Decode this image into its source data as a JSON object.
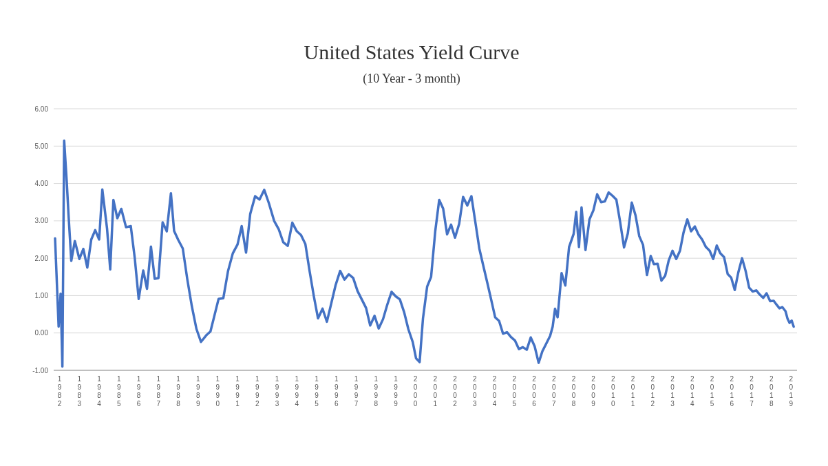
{
  "chart_data": {
    "type": "line",
    "title": "United States Yield Curve",
    "subtitle": "(10 Year - 3 month)",
    "x": [
      1981.77,
      1981.95,
      1982.05,
      1982.14,
      1982.23,
      1982.36,
      1982.45,
      1982.59,
      1982.77,
      1983.0,
      1983.2,
      1983.4,
      1983.6,
      1983.8,
      1984.0,
      1984.16,
      1984.4,
      1984.56,
      1984.72,
      1984.92,
      1985.12,
      1985.36,
      1985.6,
      1985.8,
      1986.0,
      1986.23,
      1986.42,
      1986.62,
      1986.81,
      1987.0,
      1987.21,
      1987.42,
      1987.63,
      1987.79,
      1988.0,
      1988.23,
      1988.46,
      1988.69,
      1988.92,
      1989.15,
      1989.44,
      1989.63,
      1989.81,
      1990.04,
      1990.28,
      1990.52,
      1990.76,
      1991.0,
      1991.21,
      1991.43,
      1991.64,
      1991.89,
      1992.11,
      1992.35,
      1992.58,
      1992.85,
      1993.08,
      1993.31,
      1993.54,
      1993.77,
      1994.0,
      1994.21,
      1994.43,
      1994.64,
      1994.86,
      1995.07,
      1995.3,
      1995.52,
      1995.74,
      1995.96,
      1996.19,
      1996.41,
      1996.63,
      1996.85,
      1997.07,
      1997.29,
      1997.5,
      1997.71,
      1997.93,
      1998.14,
      1998.36,
      1998.57,
      1998.79,
      1999.0,
      1999.21,
      1999.43,
      1999.64,
      1999.86,
      2000.03,
      2000.21,
      2000.38,
      2000.59,
      2000.79,
      2001.0,
      2001.2,
      2001.4,
      2001.6,
      2001.8,
      2002.0,
      2002.21,
      2002.41,
      2002.62,
      2002.83,
      2003.03,
      2003.23,
      2003.43,
      2003.63,
      2003.83,
      2004.03,
      2004.23,
      2004.43,
      2004.63,
      2004.83,
      2005.03,
      2005.23,
      2005.43,
      2005.63,
      2005.83,
      2006.03,
      2006.23,
      2006.42,
      2006.61,
      2006.81,
      2006.94,
      2007.06,
      2007.19,
      2007.39,
      2007.58,
      2007.77,
      2008.0,
      2008.13,
      2008.27,
      2008.4,
      2008.6,
      2008.8,
      2009.0,
      2009.19,
      2009.39,
      2009.58,
      2009.77,
      2009.97,
      2010.16,
      2010.35,
      2010.55,
      2010.74,
      2010.94,
      2011.13,
      2011.32,
      2011.51,
      2011.71,
      2011.9,
      2012.06,
      2012.25,
      2012.44,
      2012.63,
      2012.81,
      2013.0,
      2013.19,
      2013.38,
      2013.56,
      2013.75,
      2013.94,
      2014.13,
      2014.31,
      2014.5,
      2014.69,
      2014.88,
      2015.06,
      2015.24,
      2015.42,
      2015.61,
      2015.79,
      2015.97,
      2016.15,
      2016.33,
      2016.52,
      2016.7,
      2016.88,
      2017.06,
      2017.24,
      2017.41,
      2017.59,
      2017.76,
      2017.94,
      2018.12,
      2018.26,
      2018.41,
      2018.56,
      2018.72,
      2018.82,
      2018.92,
      2019.03,
      2019.13
    ],
    "series": [
      {
        "color": "#4472c4",
        "values": [
          2.53,
          0.17,
          1.05,
          -0.9,
          5.15,
          4.05,
          3.17,
          1.93,
          2.46,
          1.98,
          2.25,
          1.75,
          2.5,
          2.75,
          2.5,
          3.84,
          2.79,
          1.7,
          3.56,
          3.07,
          3.32,
          2.83,
          2.86,
          2.01,
          0.91,
          1.67,
          1.18,
          2.31,
          1.45,
          1.47,
          2.96,
          2.72,
          3.74,
          2.73,
          2.49,
          2.26,
          1.43,
          0.71,
          0.11,
          -0.24,
          -0.05,
          0.04,
          0.42,
          0.91,
          0.93,
          1.66,
          2.13,
          2.37,
          2.86,
          2.15,
          3.18,
          3.66,
          3.57,
          3.83,
          3.48,
          3.0,
          2.78,
          2.43,
          2.33,
          2.95,
          2.72,
          2.62,
          2.38,
          1.67,
          0.98,
          0.39,
          0.65,
          0.3,
          0.79,
          1.28,
          1.66,
          1.43,
          1.57,
          1.47,
          1.12,
          0.89,
          0.67,
          0.2,
          0.46,
          0.12,
          0.37,
          0.75,
          1.1,
          0.98,
          0.9,
          0.55,
          0.1,
          -0.24,
          -0.68,
          -0.78,
          0.39,
          1.24,
          1.5,
          2.72,
          3.56,
          3.33,
          2.64,
          2.9,
          2.55,
          2.92,
          3.64,
          3.41,
          3.66,
          2.96,
          2.26,
          1.8,
          1.35,
          0.89,
          0.42,
          0.32,
          -0.02,
          0.02,
          -0.11,
          -0.2,
          -0.43,
          -0.38,
          -0.45,
          -0.12,
          -0.36,
          -0.8,
          -0.49,
          -0.29,
          -0.08,
          0.17,
          0.65,
          0.42,
          1.6,
          1.27,
          2.3,
          2.65,
          3.24,
          2.3,
          3.36,
          2.22,
          3.04,
          3.28,
          3.71,
          3.5,
          3.52,
          3.76,
          3.67,
          3.57,
          2.98,
          2.29,
          2.66,
          3.49,
          3.15,
          2.59,
          2.36,
          1.55,
          2.06,
          1.84,
          1.85,
          1.4,
          1.53,
          1.94,
          2.2,
          1.98,
          2.2,
          2.69,
          3.04,
          2.72,
          2.85,
          2.64,
          2.5,
          2.3,
          2.2,
          1.98,
          2.34,
          2.13,
          2.03,
          1.58,
          1.48,
          1.15,
          1.62,
          2.0,
          1.66,
          1.21,
          1.11,
          1.14,
          1.03,
          0.94,
          1.06,
          0.85,
          0.86,
          0.76,
          0.66,
          0.69,
          0.58,
          0.38,
          0.27,
          0.33,
          0.17
        ]
      }
    ],
    "xlim": [
      1981.7,
      2019.3
    ],
    "xticks": [
      1982,
      1983,
      1984,
      1985,
      1986,
      1987,
      1988,
      1989,
      1990,
      1991,
      1992,
      1993,
      1994,
      1995,
      1996,
      1997,
      1998,
      1999,
      2000,
      2001,
      2002,
      2003,
      2004,
      2005,
      2006,
      2007,
      2008,
      2009,
      2010,
      2011,
      2012,
      2013,
      2014,
      2015,
      2016,
      2017,
      2018,
      2019
    ],
    "ylim": [
      -1,
      6
    ],
    "yticks": [
      {
        "value": -1,
        "label": "-1.00"
      },
      {
        "value": 0,
        "label": "0.00"
      },
      {
        "value": 1,
        "label": "1.00"
      },
      {
        "value": 2,
        "label": "2.00"
      },
      {
        "value": 3,
        "label": "3.00"
      },
      {
        "value": 4,
        "label": "4.00"
      },
      {
        "value": 5,
        "label": "5.00"
      },
      {
        "value": 6,
        "label": "6.00"
      }
    ],
    "grid": "y",
    "line_style": "solid",
    "marker": "none"
  }
}
